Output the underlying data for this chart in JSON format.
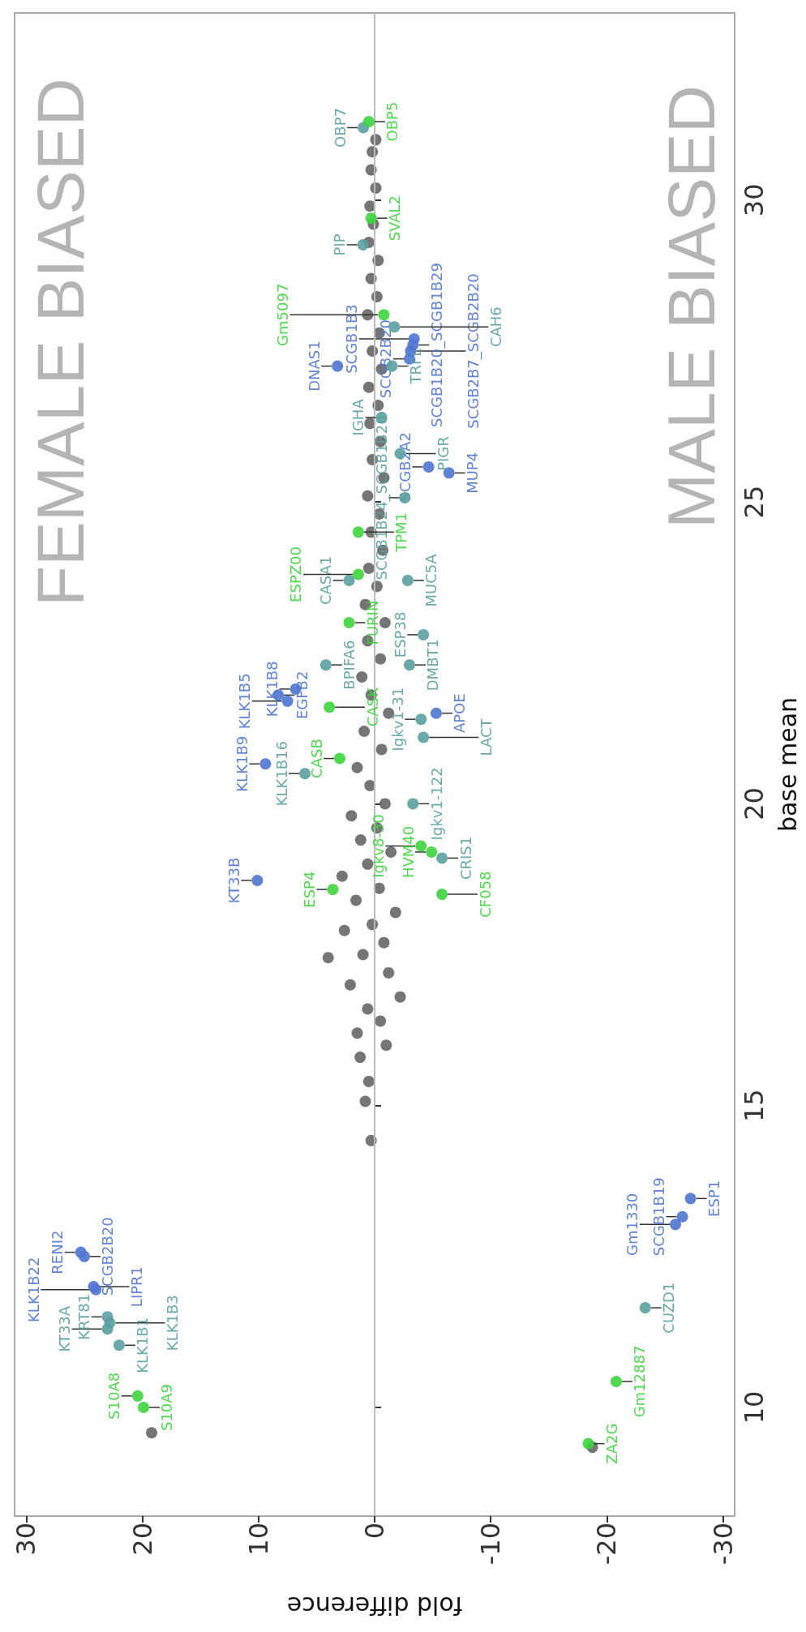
{
  "chart_data": {
    "type": "scatter",
    "xlabel": "fold difference",
    "ylabel": "base mean",
    "xlim": [
      31,
      -31
    ],
    "ylim": [
      8.2,
      33.1
    ],
    "xticks": [
      30,
      20,
      10,
      0,
      -10,
      -20,
      -30
    ],
    "yticks": [
      10,
      15,
      20,
      25,
      30
    ],
    "marker": "circle",
    "annotations": [
      "FEMALE BIASED",
      "MALE BIASED"
    ],
    "ref_lines": [
      {
        "axis": "x",
        "value": 0,
        "color": "#bbbbbb"
      }
    ],
    "series": [
      {
        "color": "#666666",
        "x": [
          0.3,
          0.8,
          0.5,
          1.25,
          -1.0,
          1.5,
          -0.5,
          0.6,
          -2.2,
          2.1,
          -1.2,
          4.0,
          1.0,
          -0.8,
          2.6,
          0.2,
          -1.8,
          1.6,
          -0.4,
          2.8,
          0.6,
          -1.4,
          1.2,
          -0.2,
          2.0,
          -0.9,
          0.4,
          1.5,
          -0.6,
          0.9,
          -1.2,
          0.3,
          1.1,
          -0.5,
          0.6,
          -0.9,
          0.8,
          -0.2,
          0.5,
          -0.7,
          0.3,
          -0.4,
          0.6,
          -0.8,
          0.2,
          -0.5,
          0.4,
          -0.3,
          0.5,
          -0.6,
          0.2,
          -0.4,
          0.6,
          -0.2,
          0.3,
          -0.3,
          0.5,
          0.1,
          0.4,
          -0.1,
          0.3,
          0.2,
          -0.1,
          19.2,
          -18.75
        ],
        "values": [
          14.42,
          15.07,
          15.4,
          15.8,
          16.0,
          16.2,
          16.4,
          16.6,
          16.8,
          17.0,
          17.2,
          17.45,
          17.5,
          17.7,
          17.9,
          18.0,
          18.2,
          18.4,
          18.6,
          18.8,
          19.0,
          19.2,
          19.4,
          19.6,
          19.8,
          20.0,
          20.3,
          20.6,
          20.9,
          21.2,
          21.5,
          21.8,
          22.1,
          22.4,
          22.7,
          23.0,
          23.3,
          23.6,
          23.9,
          24.2,
          24.5,
          24.8,
          25.1,
          25.4,
          25.7,
          26.0,
          26.3,
          26.6,
          26.9,
          27.2,
          27.5,
          27.8,
          28.1,
          28.4,
          28.7,
          29.0,
          29.3,
          29.6,
          29.9,
          30.2,
          30.5,
          30.8,
          31.0,
          9.58,
          9.34
        ]
      },
      {
        "color": "#4f74d0",
        "x": [
          3.2,
          6.8,
          8.3,
          7.5,
          9.4,
          -3.3,
          -3.0,
          -3.1,
          -3.4,
          -4.65,
          -6.4,
          -5.3,
          -27.2,
          -26.5,
          -25.9,
          25.3,
          25.0,
          24.2,
          24.0,
          10.1
        ],
        "values": [
          27.25,
          21.9,
          21.8,
          21.7,
          20.66,
          27.6,
          27.37,
          27.5,
          27.7,
          25.58,
          25.48,
          21.5,
          13.46,
          13.16,
          13.03,
          12.57,
          12.5,
          12.0,
          11.95,
          18.73
        ],
        "value_labels": [
          "DNAS1",
          "KLK1B8",
          "EGFB2",
          "KLK1B5",
          "KLK1B9",
          "SCGB1B20_SCGB1B29",
          "SCGB2B20",
          "SCGB2B7_SCGB2B20",
          "SCGB1B3",
          "SCGB2A2",
          "MUP4",
          "APOE",
          "ESP1",
          "SCGB1B19",
          "Gm1330",
          "RENI2",
          "SCGB2B20",
          "LIPR1",
          "KLK1B22",
          "KT33B"
        ]
      },
      {
        "color": "#5a9fa0",
        "x": [
          0.97,
          1.0,
          -1.7,
          -1.5,
          -0.6,
          2.2,
          4.2,
          6.0,
          -2.2,
          -2.6,
          -2.85,
          -3.0,
          -4.2,
          -4.0,
          -4.2,
          -3.3,
          -5.8,
          -23.3,
          23.0,
          22.8,
          23.0,
          22.0
        ],
        "values": [
          31.2,
          29.26,
          27.9,
          27.25,
          26.4,
          23.7,
          22.3,
          20.5,
          25.8,
          25.07,
          23.7,
          22.3,
          22.8,
          21.4,
          21.1,
          20.0,
          19.1,
          11.65,
          11.5,
          11.4,
          11.3,
          11.03
        ],
        "value_labels": [
          "OBP7",
          "PIP",
          "CAH6",
          "TRFL",
          "IGHA",
          "CASA1",
          "BPIFA6",
          "KLK1B16",
          "PIGR",
          "SCGB1B24_SCGB1B20",
          "MUC5A",
          "DMBT1",
          "ESP38",
          "Igkv1-31",
          "LACT",
          "Igkv1-122",
          "CRIS1",
          "CUZD1",
          "KRT81",
          "KLK1B3",
          "KT33A",
          "KLK1B1"
        ]
      },
      {
        "color": "#3ed43e",
        "x": [
          0.5,
          0.3,
          -0.8,
          1.4,
          1.4,
          2.2,
          3.0,
          3.9,
          3.6,
          -4.9,
          -5.8,
          -4.0,
          -20.8,
          -18.4,
          20.4,
          19.9
        ],
        "values": [
          31.3,
          29.7,
          28.1,
          24.5,
          23.8,
          23.0,
          20.75,
          21.6,
          18.58,
          19.2,
          18.5,
          19.3,
          10.43,
          9.4,
          10.19,
          10.0
        ],
        "value_labels": [
          "OBP5",
          "SVAL2",
          "Gm5097",
          "TPM1",
          "ESPZ00",
          "FURIN",
          "CASB",
          "CASK",
          "ESP4",
          "HVM40",
          "CF058",
          "Igkv8-30",
          "Gm12887",
          "ZA2G",
          "S10A8",
          "S10A9"
        ]
      }
    ]
  }
}
